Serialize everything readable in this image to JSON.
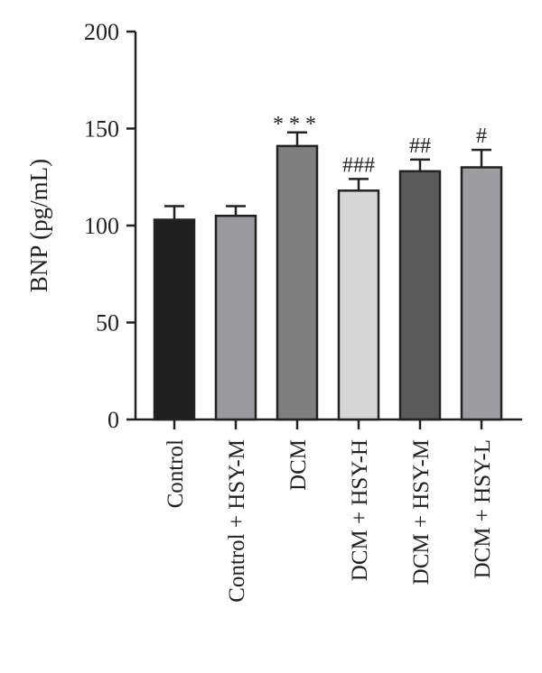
{
  "chart_data": {
    "type": "bar",
    "title": "",
    "xlabel": "",
    "ylabel": "BNP (pg/mL)",
    "ylim": [
      0,
      200
    ],
    "yticks": [
      0,
      50,
      100,
      150,
      200
    ],
    "grid": false,
    "legend": "none",
    "categories": [
      "Control",
      "Control + HSY-M",
      "DCM",
      "DCM + HSY-H",
      "DCM + HSY-M",
      "DCM + HSY-L"
    ],
    "values": [
      103,
      105,
      141,
      118,
      128,
      130
    ],
    "errors": [
      7,
      5,
      7,
      6,
      6,
      9
    ],
    "annotations": [
      "",
      "",
      "***",
      "###",
      "##",
      "#"
    ],
    "colors": [
      "#1f1f1f",
      "#9b9b9f",
      "#7f7f7f",
      "#d6d6d6",
      "#5a5a5a",
      "#9d9da1"
    ]
  }
}
